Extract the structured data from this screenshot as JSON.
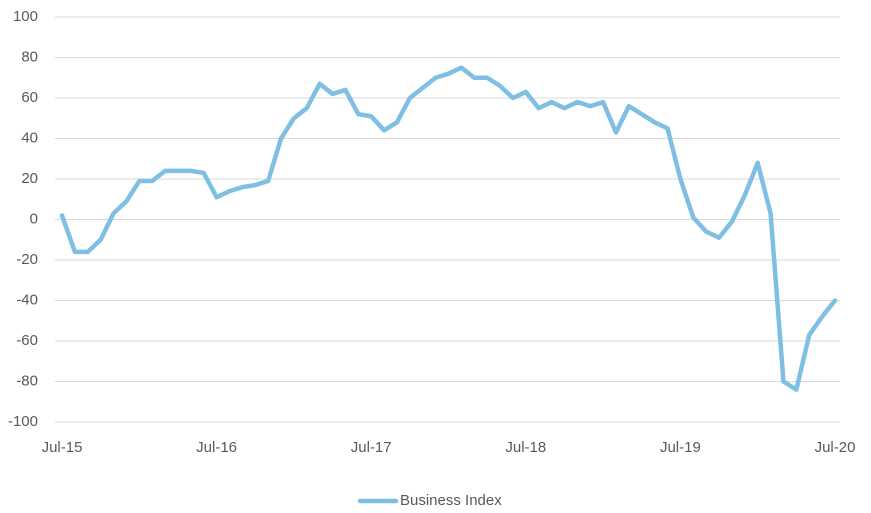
{
  "chart_data": {
    "type": "line",
    "categories": [
      "Jul-15",
      null,
      null,
      null,
      null,
      null,
      null,
      null,
      null,
      null,
      null,
      null,
      "Jul-16",
      null,
      null,
      null,
      null,
      null,
      null,
      null,
      null,
      null,
      null,
      null,
      "Jul-17",
      null,
      null,
      null,
      null,
      null,
      null,
      null,
      null,
      null,
      null,
      null,
      "Jul-18",
      null,
      null,
      null,
      null,
      null,
      null,
      null,
      null,
      null,
      null,
      null,
      "Jul-19",
      null,
      null,
      null,
      null,
      null,
      null,
      null,
      null,
      null,
      null,
      null,
      "Jul-20"
    ],
    "series": [
      {
        "name": "Business Index",
        "color": "#7fbfe3",
        "values": [
          2,
          -16,
          -16,
          -10,
          3,
          9,
          19,
          19,
          24,
          24,
          24,
          23,
          11,
          14,
          16,
          17,
          19,
          40,
          50,
          55,
          67,
          62,
          64,
          52,
          51,
          44,
          48,
          60,
          65,
          70,
          72,
          75,
          70,
          70,
          66,
          60,
          63,
          55,
          58,
          55,
          58,
          56,
          58,
          43,
          56,
          52,
          48,
          45,
          20,
          1,
          -6,
          -9,
          -1,
          12,
          28,
          3,
          -80,
          -84,
          -57,
          -48,
          -40
        ]
      }
    ],
    "ylim": [
      -100,
      100
    ],
    "yticks": [
      -100,
      -80,
      -60,
      -40,
      -20,
      0,
      20,
      40,
      60,
      80,
      100
    ],
    "grid": true,
    "legend": "bottom"
  }
}
